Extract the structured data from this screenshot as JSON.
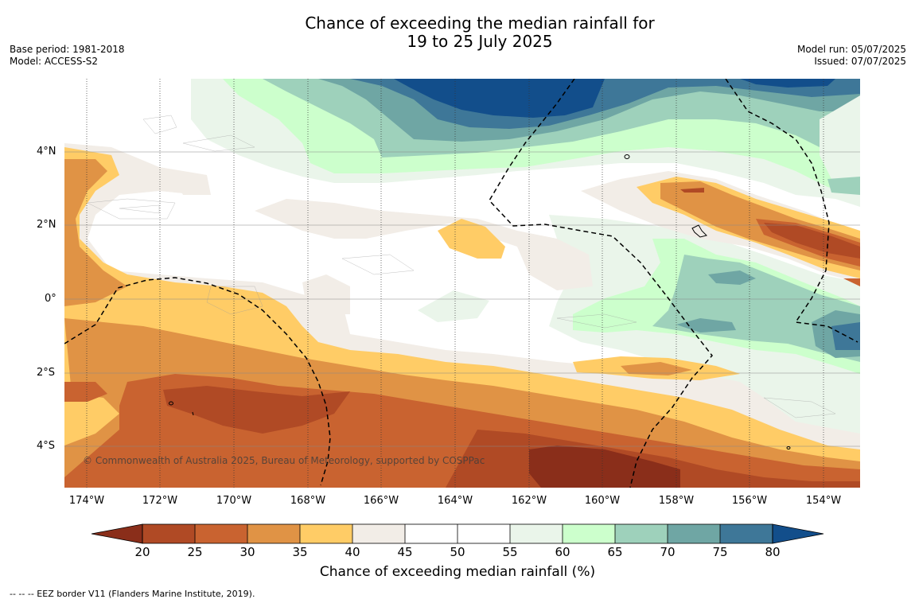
{
  "title": {
    "line1": "Chance of exceeding the median rainfall for",
    "line2": "19 to 25 July 2025"
  },
  "meta_left": {
    "base_period": "Base period: 1981-2018",
    "model": "Model: ACCESS-S2"
  },
  "meta_right": {
    "model_run": "Model run: 05/07/2025",
    "issued": "Issued: 07/07/2025"
  },
  "map": {
    "lat_ticks": [
      "4°N",
      "2°N",
      "0°",
      "2°S",
      "4°S"
    ],
    "lon_ticks": [
      "174°W",
      "172°W",
      "170°W",
      "168°W",
      "166°W",
      "164°W",
      "162°W",
      "160°W",
      "158°W",
      "156°W",
      "154°W"
    ],
    "copyright": "© Commonwealth of Australia 2025, Bureau of Meteorology, supported by COSPPac"
  },
  "colorbar": {
    "ticks": [
      "20",
      "25",
      "30",
      "35",
      "40",
      "45",
      "50",
      "55",
      "60",
      "65",
      "70",
      "75",
      "80"
    ],
    "label": "Chance of exceeding median rainfall (%)",
    "colors": {
      "below_20": "#8a2e1a",
      "20_25": "#b04a25",
      "25_30": "#c96330",
      "30_35": "#e09345",
      "35_40": "#ffcc66",
      "40_45": "#f2ede7",
      "45_50": "#ffffff",
      "50_55": "#ffffff",
      "55_60": "#eaf5ea",
      "60_65": "#ccffcc",
      "65_70": "#9ed1bb",
      "70_75": "#6fa6a4",
      "75_80": "#3e7798",
      "above_80": "#124e8b"
    }
  },
  "footnote": "--  --  -- EEZ border V11 (Flanders Marine Institute, 2019)."
}
